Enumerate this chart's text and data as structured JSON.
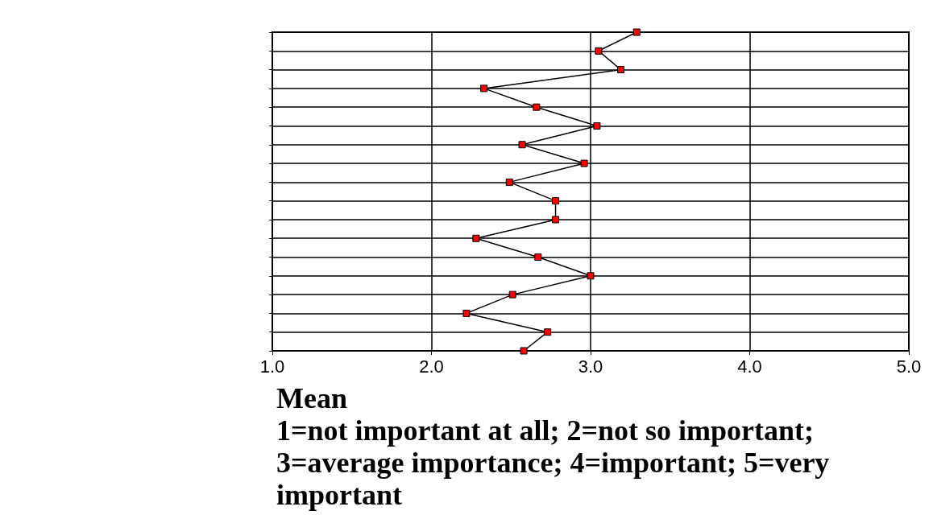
{
  "chart_data": {
    "type": "line",
    "orientation": "horizontal",
    "xlabel": "Mean\n1=not important at all; 2=not so important; 3=average importance; 4=important; 5=very important",
    "categories": [
      null,
      null,
      null,
      null,
      null,
      null,
      null,
      null,
      null,
      null,
      null,
      null,
      null,
      null,
      null,
      null,
      null,
      null
    ],
    "series": [
      {
        "color": "#ff0000",
        "values": [
          3.29,
          3.05,
          3.19,
          2.33,
          2.66,
          3.04,
          2.57,
          2.96,
          2.49,
          2.78,
          2.78,
          2.28,
          2.67,
          3.0,
          2.51,
          2.22,
          2.73,
          2.58
        ]
      }
    ],
    "xlim": [
      1,
      5
    ],
    "xticks": [
      {
        "value": 1,
        "label": "1.0"
      },
      {
        "value": 2,
        "label": "2.0"
      },
      {
        "value": 3,
        "label": "3.0"
      },
      {
        "value": 4,
        "label": "4.0"
      },
      {
        "value": 5,
        "label": "5.0"
      }
    ],
    "grid": true,
    "marker": "square",
    "line_style": "solid"
  }
}
